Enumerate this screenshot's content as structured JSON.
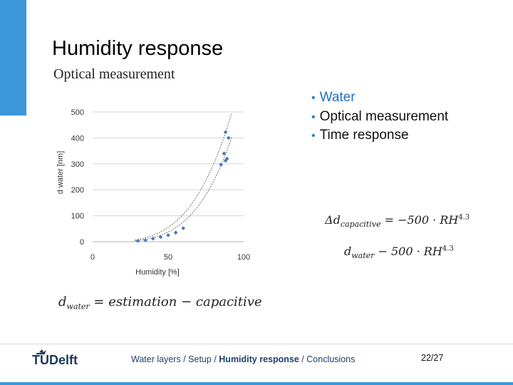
{
  "slide": {
    "title": "Humidity response",
    "subtitle": "Optical measurement",
    "bullets": [
      "Water",
      "Optical measurement",
      "Time response"
    ],
    "formulas": {
      "capacitive": "Δd_capacitive = −500 · RH^4.3",
      "water": "d_water − 500 · RH^4.3",
      "estimation": "d_water = estimation − capacitive"
    }
  },
  "footer": {
    "logo": "TUDelft",
    "breadcrumb": {
      "item1": "Water layers",
      "item2": "Setup",
      "item3": "Humidity response",
      "item4": "Conclusions",
      "separator": "/"
    },
    "page": "22/27"
  },
  "colors": {
    "accent": "#3b97d8",
    "marker": "#4a78b5",
    "text": "#1d3f6e"
  },
  "chart_data": {
    "type": "scatter",
    "xlabel": "Humidity [%]",
    "ylabel": "d water [nm]",
    "xlim": [
      0,
      100
    ],
    "ylim": [
      0,
      500
    ],
    "xticks": [
      0,
      50,
      100
    ],
    "yticks": [
      0,
      100,
      200,
      300,
      400,
      500
    ],
    "grid": true,
    "points": [
      {
        "x": 30,
        "y": 3
      },
      {
        "x": 35,
        "y": 6
      },
      {
        "x": 40,
        "y": 12
      },
      {
        "x": 45,
        "y": 18
      },
      {
        "x": 50,
        "y": 25
      },
      {
        "x": 55,
        "y": 35
      },
      {
        "x": 60,
        "y": 52
      },
      {
        "x": 85,
        "y": 297
      },
      {
        "x": 87,
        "y": 340
      },
      {
        "x": 88,
        "y": 312
      },
      {
        "x": 89,
        "y": 320
      },
      {
        "x": 90,
        "y": 400
      },
      {
        "x": 88,
        "y": 422
      }
    ],
    "curves": [
      {
        "coef": 4.2e-05,
        "exp": 3.6
      },
      {
        "coef": 8.8e-06,
        "exp": 3.9
      }
    ]
  }
}
